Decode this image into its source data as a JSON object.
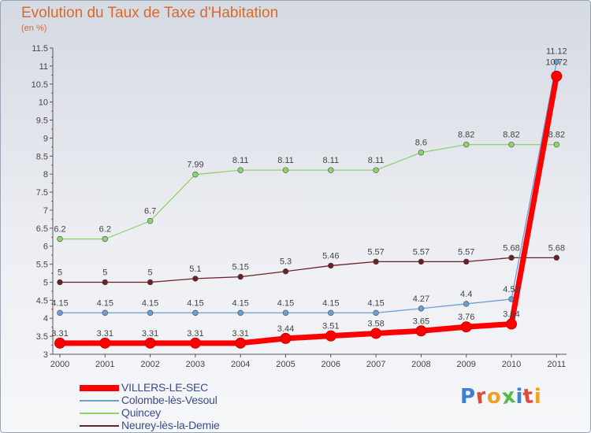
{
  "header": {
    "title": "Evolution du Taux de Taxe d'Habitation",
    "subtitle": "(en %)"
  },
  "brand": {
    "logo_text": "Proxiti",
    "letter_colors": [
      "#3d7fd0",
      "#e04a3b",
      "#f0a020",
      "#58b84a",
      "#3d7fd0",
      "#e04a3b",
      "#f0a020"
    ]
  },
  "chart_data": {
    "type": "line",
    "title": "Evolution du Taux de Taxe d'Habitation",
    "subtitle": "(en %)",
    "x": [
      "2000",
      "2001",
      "2002",
      "2003",
      "2004",
      "2005",
      "2006",
      "2007",
      "2008",
      "2009",
      "2010",
      "2011"
    ],
    "ylim": [
      3,
      11.5
    ],
    "yticks": [
      "3",
      "3.5",
      "4",
      "4.5",
      "5",
      "5.5",
      "6",
      "6.5",
      "7",
      "7.5",
      "8",
      "8.5",
      "9",
      "9.5",
      "10",
      "10.5",
      "11",
      "11.5"
    ],
    "grid": false,
    "legend_position": "bottom-left",
    "series": [
      {
        "name": "VILLERS-LE-SEC",
        "color": "#ff0000",
        "values": [
          3.31,
          3.31,
          3.31,
          3.31,
          3.31,
          3.44,
          3.51,
          3.58,
          3.65,
          3.76,
          3.84,
          10.72
        ],
        "labels": [
          "3.31",
          "3.31",
          "3.31",
          "3.31",
          "3.31",
          "3.44",
          "3.51",
          "3.58",
          "3.65",
          "3.76",
          "3.84",
          "10.72"
        ]
      },
      {
        "name": "Colombe-lès-Vesoul",
        "color": "#6a9fd6",
        "values": [
          4.15,
          4.15,
          4.15,
          4.15,
          4.15,
          4.15,
          4.15,
          4.15,
          4.27,
          4.4,
          4.53,
          11.12
        ],
        "labels": [
          "4.15",
          "4.15",
          "4.15",
          "4.15",
          "4.15",
          "4.15",
          "4.15",
          "4.15",
          "4.27",
          "4.4",
          "4.53",
          "11.12"
        ]
      },
      {
        "name": "Quincey",
        "color": "#8fd36b",
        "values": [
          6.2,
          6.2,
          6.7,
          7.99,
          8.11,
          8.11,
          8.11,
          8.11,
          8.6,
          8.82,
          8.82,
          8.82
        ],
        "labels": [
          "6.2",
          "6.2",
          "6.7",
          "7.99",
          "8.11",
          "8.11",
          "8.11",
          "8.11",
          "8.6",
          "8.82",
          "8.82",
          "8.82"
        ]
      },
      {
        "name": "Neurey-lès-la-Demie",
        "color": "#6b1f26",
        "values": [
          5,
          5,
          5,
          5.1,
          5.15,
          5.3,
          5.46,
          5.57,
          5.57,
          5.57,
          5.68,
          5.68
        ],
        "labels": [
          "5",
          "5",
          "5",
          "5.1",
          "5.15",
          "5.3",
          "5.46",
          "5.57",
          "5.57",
          "5.57",
          "5.68",
          "5.68"
        ]
      }
    ]
  }
}
